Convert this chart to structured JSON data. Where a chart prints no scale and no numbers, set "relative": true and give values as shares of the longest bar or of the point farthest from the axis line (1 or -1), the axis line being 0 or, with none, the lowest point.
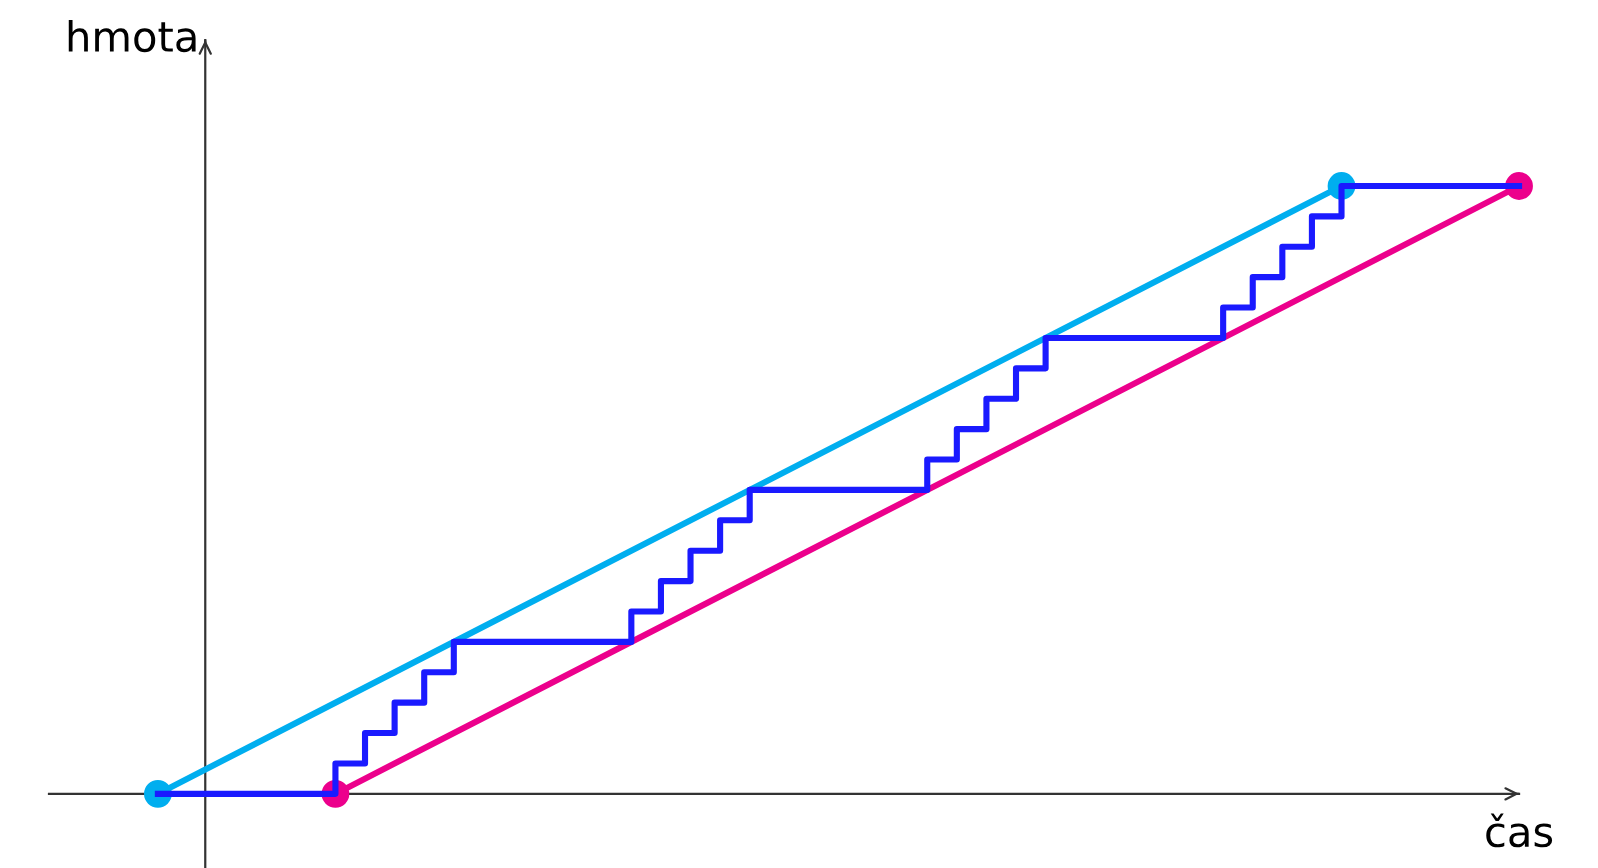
{
  "chart_data": {
    "type": "line",
    "relative": true,
    "xlabel": "čas",
    "ylabel": "hmota",
    "categories": [
      null,
      null,
      null,
      null,
      null,
      null,
      null,
      null,
      null,
      null,
      null,
      null,
      null,
      null,
      null,
      null,
      null,
      null,
      null,
      null,
      null,
      null,
      null,
      null,
      null,
      null,
      null,
      null,
      null,
      null,
      null,
      null,
      null,
      null,
      null,
      null,
      null,
      null,
      null,
      null,
      null,
      null,
      null,
      null,
      null,
      null,
      null
    ],
    "series": [
      {
        "color": "#00aeef",
        "marker": "circle",
        "values": [
          0,
          null,
          null,
          null,
          null,
          null,
          null,
          null,
          null,
          null,
          null,
          null,
          null,
          null,
          null,
          null,
          null,
          null,
          null,
          null,
          null,
          null,
          null,
          null,
          null,
          null,
          null,
          null,
          null,
          null,
          null,
          null,
          null,
          null,
          null,
          null,
          null,
          null,
          null,
          null,
          1,
          null,
          null,
          null,
          null,
          null,
          null
        ]
      },
      {
        "color": "#ec008c",
        "marker": "circle",
        "values": [
          null,
          null,
          null,
          null,
          null,
          null,
          0,
          null,
          null,
          null,
          null,
          null,
          null,
          null,
          null,
          null,
          null,
          null,
          null,
          null,
          null,
          null,
          null,
          null,
          null,
          null,
          null,
          null,
          null,
          null,
          null,
          null,
          null,
          null,
          null,
          null,
          null,
          null,
          null,
          null,
          null,
          null,
          null,
          null,
          null,
          null,
          1
        ]
      },
      {
        "type": "step",
        "color": "#1a1aff",
        "values": [
          0,
          0,
          0,
          0,
          0,
          0,
          0.05,
          0.1,
          0.15,
          0.2,
          0.25,
          0.25,
          0.25,
          0.25,
          0.25,
          0.25,
          0.3,
          0.35,
          0.4,
          0.45,
          0.5,
          0.5,
          0.5,
          0.5,
          0.5,
          0.5,
          0.55,
          0.6,
          0.65,
          0.7,
          0.75,
          0.75,
          0.75,
          0.75,
          0.75,
          0.75,
          0.8,
          0.85,
          0.9,
          0.95,
          1,
          1,
          1,
          1,
          1,
          1,
          1
        ]
      }
    ]
  }
}
